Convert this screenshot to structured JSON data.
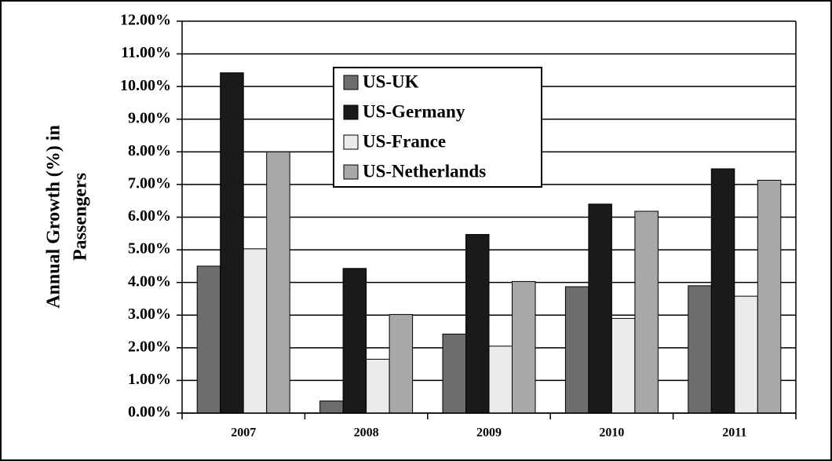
{
  "chart_data": {
    "type": "bar",
    "ylabel": [
      "Annual Growth (%) in",
      "Passengers"
    ],
    "categories": [
      "2007",
      "2008",
      "2009",
      "2010",
      "2011"
    ],
    "series": [
      {
        "name": "US-UK",
        "color": "#6d6d6d",
        "values": [
          4.5,
          0.37,
          2.42,
          3.87,
          3.9
        ]
      },
      {
        "name": "US-Germany",
        "color": "#1a1a1a",
        "values": [
          10.42,
          4.43,
          5.47,
          6.4,
          7.48
        ]
      },
      {
        "name": "US-France",
        "color": "#ebebeb",
        "values": [
          5.03,
          1.65,
          2.05,
          2.9,
          3.58
        ]
      },
      {
        "name": "US-Netherlands",
        "color": "#a8a8a8",
        "values": [
          8.0,
          3.02,
          4.03,
          6.18,
          7.13
        ]
      }
    ],
    "ylim": [
      0,
      12
    ],
    "yticks": [
      {
        "value": 0,
        "label": "0.00%"
      },
      {
        "value": 1,
        "label": "1.00%"
      },
      {
        "value": 2,
        "label": "2.00%"
      },
      {
        "value": 3,
        "label": "3.00%"
      },
      {
        "value": 4,
        "label": "4.00%"
      },
      {
        "value": 5,
        "label": "5.00%"
      },
      {
        "value": 6,
        "label": "6.00%"
      },
      {
        "value": 7,
        "label": "7.00%"
      },
      {
        "value": 8,
        "label": "8.00%"
      },
      {
        "value": 9,
        "label": "9.00%"
      },
      {
        "value": 10,
        "label": "10.00%"
      },
      {
        "value": 11,
        "label": "11.00%"
      },
      {
        "value": 12,
        "label": "12.00%"
      }
    ],
    "grid": true
  }
}
